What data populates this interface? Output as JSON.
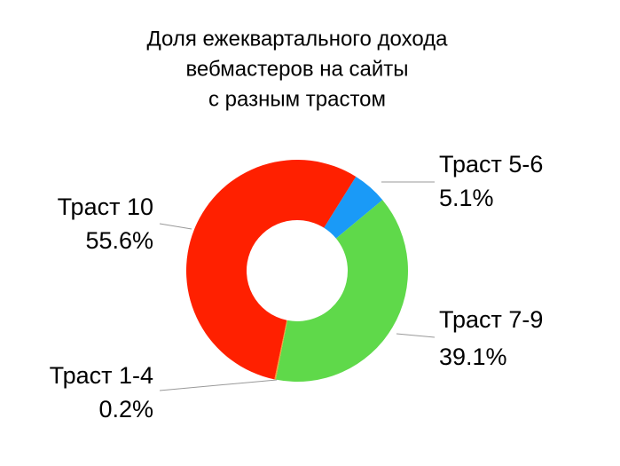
{
  "chart_data": {
    "type": "donut",
    "title": [
      "Доля ежеквартального дохода",
      "вебмастеров на сайты",
      "с разным трастом"
    ],
    "categories": [
      "Траст 5-6",
      "Траст 7-9",
      "Траст 1-4",
      "Траст 10"
    ],
    "values": [
      5.1,
      39.1,
      0.2,
      55.6
    ],
    "value_labels": [
      "5.1%",
      "39.1%",
      "0.2%",
      "55.6%"
    ],
    "colors": [
      "#1a9af7",
      "#5fd94a",
      "#f0a030",
      "#ff2000"
    ]
  }
}
